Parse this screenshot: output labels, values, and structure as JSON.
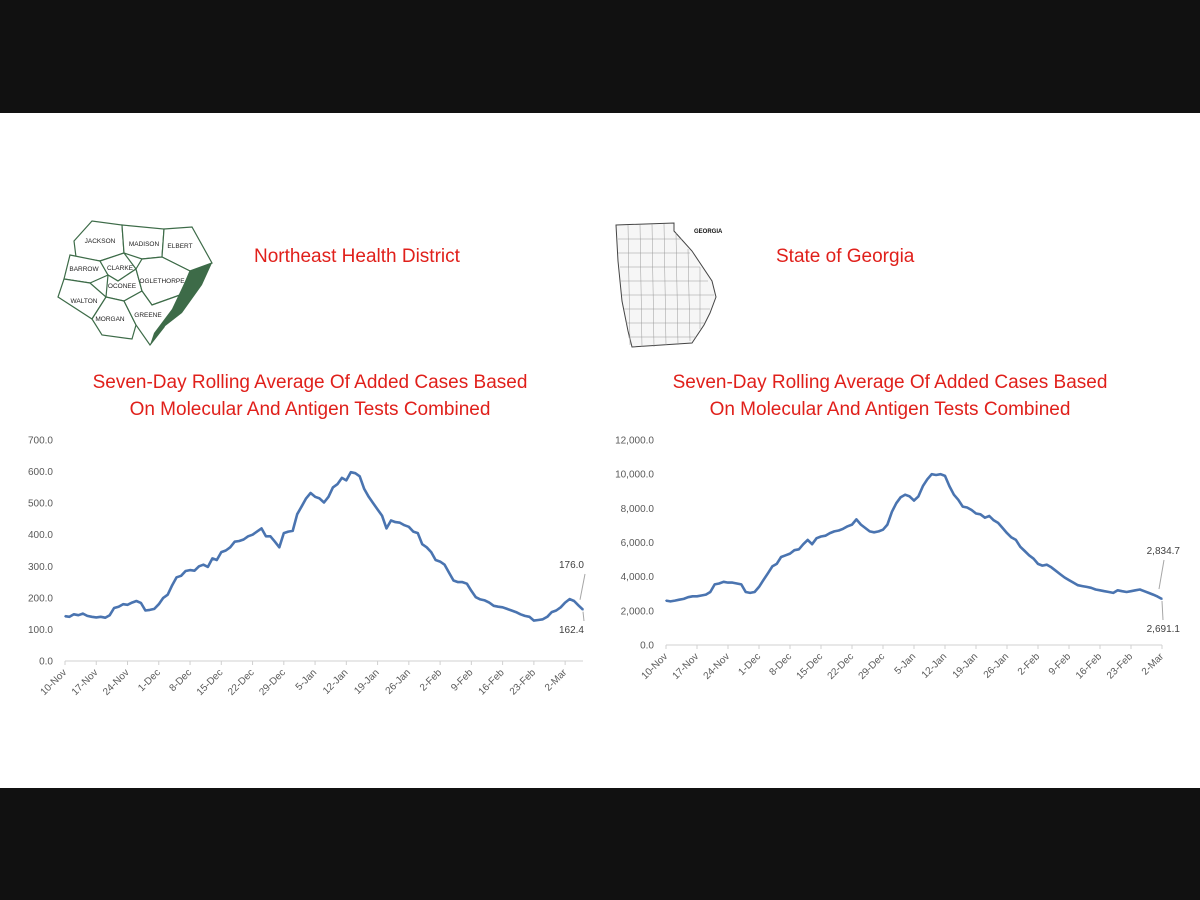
{
  "colors": {
    "line": "#4a74b0",
    "title": "#e0201b",
    "axis": "#7f7f7f",
    "map_stroke": "#3d6b48"
  },
  "panels": [
    {
      "heading": "Northeast Health District",
      "map": {
        "icon": "northeast-district-map-icon",
        "counties": [
          "JACKSON",
          "MADISON",
          "ELBERT",
          "BARROW",
          "CLARKE",
          "OCONEE",
          "OGLETHORPE",
          "WALTON",
          "MORGAN",
          "GREENE"
        ]
      },
      "chart_title_line1": "Seven-Day Rolling Average Of  Added Cases Based",
      "chart_title_line2": "On Molecular And Antigen Tests Combined"
    },
    {
      "heading": "State of Georgia",
      "map": {
        "icon": "georgia-state-map-icon",
        "label": "GEORGIA"
      },
      "chart_title_line1": "Seven-Day Rolling Average Of  Added Cases Based",
      "chart_title_line2": "On Molecular And Antigen Tests Combined"
    }
  ],
  "chart_data": [
    {
      "type": "line",
      "title": "Seven-Day Rolling Average Of  Added Cases Based On Molecular And Antigen Tests Combined",
      "xlabel": "",
      "ylabel": "",
      "x_tick_labels": [
        "10-Nov",
        "17-Nov",
        "24-Nov",
        "1-Dec",
        "8-Dec",
        "15-Dec",
        "22-Dec",
        "29-Dec",
        "5-Jan",
        "12-Jan",
        "19-Jan",
        "26-Jan",
        "2-Feb",
        "9-Feb",
        "16-Feb",
        "23-Feb",
        "2-Mar"
      ],
      "y_tick_labels": [
        "0.0",
        "100.0",
        "200.0",
        "300.0",
        "400.0",
        "500.0",
        "600.0",
        "700.0"
      ],
      "ylim": [
        0,
        700
      ],
      "grid": false,
      "x_start": "10-Nov",
      "annotations": [
        "176.0",
        "162.4"
      ],
      "values": [
        142,
        140,
        148,
        145,
        150,
        143,
        140,
        138,
        140,
        137,
        145,
        168,
        172,
        180,
        178,
        185,
        190,
        184,
        160,
        162,
        165,
        180,
        200,
        210,
        240,
        265,
        270,
        285,
        288,
        286,
        300,
        305,
        298,
        325,
        320,
        345,
        350,
        360,
        378,
        380,
        385,
        395,
        400,
        410,
        420,
        395,
        395,
        378,
        360,
        405,
        410,
        412,
        465,
        490,
        515,
        532,
        520,
        515,
        502,
        520,
        550,
        560,
        580,
        572,
        598,
        595,
        585,
        545,
        520,
        500,
        480,
        460,
        420,
        445,
        440,
        438,
        430,
        425,
        410,
        405,
        370,
        360,
        345,
        320,
        315,
        305,
        280,
        255,
        250,
        250,
        245,
        222,
        202,
        195,
        192,
        185,
        175,
        172,
        170,
        165,
        160,
        155,
        148,
        143,
        140,
        128,
        130,
        132,
        140,
        155,
        160,
        170,
        185,
        196,
        190,
        176,
        162.4
      ]
    },
    {
      "type": "line",
      "title": "Seven-Day Rolling Average Of  Added Cases Based On Molecular And Antigen Tests Combined",
      "xlabel": "",
      "ylabel": "",
      "x_tick_labels": [
        "10-Nov",
        "17-Nov",
        "24-Nov",
        "1-Dec",
        "8-Dec",
        "15-Dec",
        "22-Dec",
        "29-Dec",
        "5-Jan",
        "12-Jan",
        "19-Jan",
        "26-Jan",
        "2-Feb",
        "9-Feb",
        "16-Feb",
        "23-Feb",
        "2-Mar"
      ],
      "y_tick_labels": [
        "0.0",
        "2,000.0",
        "4,000.0",
        "6,000.0",
        "8,000.0",
        "10,000.0",
        "12,000.0"
      ],
      "ylim": [
        0,
        12000
      ],
      "grid": false,
      "x_start": "10-Nov",
      "annotations": [
        "2,834.7",
        "2,691.1"
      ],
      "values": [
        2600,
        2550,
        2600,
        2650,
        2700,
        2800,
        2850,
        2850,
        2900,
        2950,
        3100,
        3550,
        3600,
        3700,
        3650,
        3650,
        3600,
        3550,
        3100,
        3050,
        3100,
        3400,
        3800,
        4200,
        4600,
        4750,
        5150,
        5250,
        5350,
        5550,
        5600,
        5900,
        6150,
        5900,
        6250,
        6350,
        6400,
        6550,
        6650,
        6700,
        6800,
        6950,
        7050,
        7350,
        7050,
        6850,
        6650,
        6600,
        6650,
        6750,
        7050,
        7800,
        8300,
        8650,
        8800,
        8700,
        8450,
        8700,
        9300,
        9700,
        10000,
        9950,
        10000,
        9900,
        9300,
        8800,
        8500,
        8100,
        8050,
        7900,
        7700,
        7650,
        7450,
        7550,
        7300,
        7150,
        6850,
        6550,
        6300,
        6150,
        5750,
        5500,
        5250,
        5050,
        4750,
        4650,
        4700,
        4550,
        4350,
        4150,
        3950,
        3800,
        3650,
        3500,
        3450,
        3400,
        3350,
        3250,
        3200,
        3150,
        3100,
        3050,
        3200,
        3150,
        3100,
        3150,
        3200,
        3250,
        3150,
        3050,
        2950,
        2834.7,
        2691.1
      ]
    }
  ]
}
